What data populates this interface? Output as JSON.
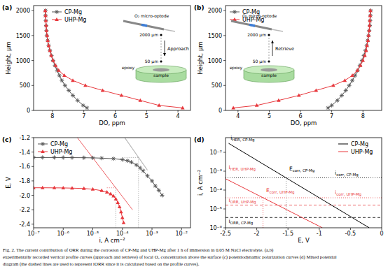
{
  "chart_data": [
    {
      "type": "line",
      "title": "(a)",
      "xlabel": "DO, ppm",
      "ylabel": "Height, µm",
      "xlim": [
        8.6,
        3.6
      ],
      "ylim": [
        0,
        2100
      ],
      "xticks": [
        8,
        7,
        6,
        5,
        4
      ],
      "yticks": [
        0,
        500,
        1000,
        1500,
        2000
      ],
      "grid": false,
      "legend": "upper left",
      "series": [
        {
          "name": "CP-Mg",
          "color": "#555555",
          "marker": "star",
          "line_style": "solid",
          "x": [
            8.22,
            8.22,
            8.21,
            8.2,
            8.19,
            8.18,
            8.15,
            8.12,
            8.08,
            8.03,
            7.98,
            7.92,
            7.85,
            7.78,
            7.7,
            7.6,
            7.48,
            7.35,
            7.2,
            7.02,
            6.9
          ],
          "values": [
            2000,
            1900,
            1800,
            1700,
            1600,
            1500,
            1400,
            1300,
            1200,
            1100,
            1000,
            900,
            800,
            700,
            600,
            500,
            400,
            300,
            200,
            100,
            50
          ]
        },
        {
          "name": "UHP-Mg",
          "color": "#e8383d",
          "marker": "triangle",
          "line_style": "solid",
          "x": [
            8.23,
            8.22,
            8.21,
            8.2,
            8.19,
            8.17,
            8.15,
            8.12,
            8.08,
            8.04,
            7.98,
            7.9,
            7.8,
            7.62,
            7.35,
            6.95,
            6.4,
            5.8,
            5.2,
            4.6,
            3.85
          ],
          "values": [
            2000,
            1900,
            1800,
            1700,
            1600,
            1500,
            1400,
            1300,
            1200,
            1100,
            1000,
            900,
            800,
            700,
            600,
            500,
            400,
            300,
            200,
            100,
            50
          ]
        }
      ],
      "inset": {
        "probe": "O₂ micro-optode",
        "top": "2000 µm",
        "action": "Approach",
        "bottom": "50 µm",
        "holder": "epoxy",
        "sample": "sample"
      }
    },
    {
      "type": "line",
      "title": "(b)",
      "xlabel": "DO, ppm",
      "ylabel": "Height, µm",
      "xlim": [
        3.6,
        8.6
      ],
      "ylim": [
        0,
        2100
      ],
      "xticks": [
        4,
        5,
        6,
        7,
        8
      ],
      "yticks": [
        0,
        500,
        1000,
        1500,
        2000
      ],
      "grid": false,
      "legend": "upper left",
      "series": [
        {
          "name": "CP-Mg",
          "color": "#555555",
          "marker": "star",
          "line_style": "solid",
          "x": [
            8.25,
            8.24,
            8.23,
            8.22,
            8.2,
            8.18,
            8.15,
            8.12,
            8.08,
            8.03,
            7.97,
            7.9,
            7.83,
            7.75,
            7.66,
            7.56,
            7.45,
            7.32,
            7.18,
            7.0,
            6.88
          ],
          "values": [
            2000,
            1900,
            1800,
            1700,
            1600,
            1500,
            1400,
            1300,
            1200,
            1100,
            1000,
            900,
            800,
            700,
            600,
            500,
            400,
            300,
            200,
            100,
            50
          ]
        },
        {
          "name": "UHP-Mg",
          "color": "#e8383d",
          "marker": "triangle",
          "line_style": "solid",
          "x": [
            8.24,
            8.23,
            8.22,
            8.21,
            8.2,
            8.18,
            8.16,
            8.13,
            8.1,
            8.06,
            8.0,
            7.92,
            7.82,
            7.66,
            7.42,
            7.05,
            6.5,
            5.95,
            5.3,
            4.6,
            3.85
          ],
          "values": [
            2000,
            1900,
            1800,
            1700,
            1600,
            1500,
            1400,
            1300,
            1200,
            1100,
            1000,
            900,
            800,
            700,
            600,
            500,
            400,
            300,
            200,
            100,
            50
          ]
        }
      ],
      "inset": {
        "probe": "O₂ micro-optode",
        "top": "2000 µm",
        "action": "Retrieve",
        "bottom": "50 µm",
        "holder": "epoxy",
        "sample": "sample"
      }
    },
    {
      "type": "line",
      "title": "(c)",
      "xlabel": "i, A cm⁻²",
      "ylabel": "E, V",
      "log": "x",
      "xlim": [
        1e-07,
        0.02
      ],
      "ylim": [
        -2.45,
        -1.2
      ],
      "xticks": [
        {
          "value": 1e-07,
          "label": "10⁻⁷"
        },
        {
          "value": 1e-06,
          "label": "10⁻⁶"
        },
        {
          "value": 1e-05,
          "label": "10⁻⁵"
        },
        {
          "value": 0.0001,
          "label": "10⁻⁴"
        },
        {
          "value": 0.001,
          "label": "10⁻³"
        },
        {
          "value": 0.01,
          "label": "10⁻²"
        }
      ],
      "yticks": [
        -1.2,
        -1.4,
        -1.6,
        -1.8,
        {
          "value": -2,
          "label": "-2.0"
        },
        -2.2,
        -2.4
      ],
      "grid": false,
      "legend": "upper left",
      "series": [
        {
          "name": "CP-Mg",
          "color": "#555555",
          "marker": "star",
          "line_style": "solid",
          "x": [
            1e-07,
            2e-07,
            5e-07,
            1e-06,
            2e-06,
            5e-06,
            1e-05,
            2e-05,
            5e-05,
            0.0001,
            0.00015,
            0.0002,
            0.0003,
            0.0004,
            0.0005,
            0.0007,
            0.001,
            0.0013,
            0.0017,
            0.0022
          ],
          "values": [
            -1.475,
            -1.475,
            -1.475,
            -1.476,
            -1.477,
            -1.478,
            -1.48,
            -1.484,
            -1.492,
            -1.505,
            -1.52,
            -1.54,
            -1.58,
            -1.62,
            -1.66,
            -1.73,
            -1.8,
            -1.87,
            -1.93,
            -2.0
          ]
        },
        {
          "name": "UHP-Mg",
          "color": "#e8383d",
          "marker": "triangle",
          "line_style": "solid",
          "x": [
            1e-07,
            2e-07,
            5e-07,
            1e-06,
            2e-06,
            5e-06,
            1e-05,
            2e-05,
            3e-05,
            4e-05,
            5e-05,
            6e-05,
            7e-05,
            8e-05,
            9e-05,
            0.0001,
            0.00011
          ],
          "values": [
            -1.895,
            -1.895,
            -1.896,
            -1.897,
            -1.9,
            -1.905,
            -1.915,
            -1.935,
            -1.955,
            -1.98,
            -2.01,
            -2.05,
            -2.1,
            -2.16,
            -2.23,
            -2.31,
            -2.38
          ]
        }
      ],
      "guides": [
        {
          "color": "#888888",
          "line_style": "solid",
          "x": [
            0.00012,
            0.0007
          ],
          "values": [
            -1.2,
            -1.65
          ]
        },
        {
          "color": "#e8383d",
          "line_style": "solid",
          "x": [
            3e-06,
            0.00022
          ],
          "values": [
            -1.2,
            -2.2
          ]
        },
        {
          "color": "#888888",
          "line_style": "dotted",
          "x": [
            0.0001,
            0.00035
          ],
          "values": [
            -1.475,
            -1.475
          ]
        },
        {
          "color": "#888888",
          "line_style": "dotted",
          "x": [
            0.00035,
            0.00035
          ],
          "values": [
            -1.475,
            -2.45
          ]
        },
        {
          "color": "#e8383d",
          "line_style": "dotted",
          "x": [
            3e-05,
            6e-05
          ],
          "values": [
            -1.895,
            -1.895
          ]
        },
        {
          "color": "#888888",
          "line_style": "dotted",
          "x": [
            6e-05,
            6e-05
          ],
          "values": [
            -1.895,
            -2.45
          ]
        }
      ]
    },
    {
      "type": "line",
      "title": "(d)",
      "xlabel": "E, V",
      "ylabel": "i, A cm⁻²",
      "log": "y",
      "xlim": [
        -2.5,
        0
      ],
      "ylim": [
        1e-06,
        0.06
      ],
      "xticks": [
        -2.5,
        -2,
        -1.5,
        -1,
        -0.5,
        0
      ],
      "yticks": [
        {
          "value": 1e-06,
          "label": "10⁻⁶"
        },
        {
          "value": 1e-05,
          "label": "10⁻⁵"
        },
        {
          "value": 0.0001,
          "label": "10⁻⁴"
        },
        {
          "value": 0.001,
          "label": "10⁻³"
        },
        {
          "value": 0.01,
          "label": "10⁻²"
        }
      ],
      "grid": false,
      "legend": "upper right",
      "series": [
        {
          "name": "CP-Mg",
          "color": "#000000",
          "line_style": "solid",
          "x": [
            -2.45,
            -0.2
          ],
          "values": [
            0.03,
            1e-06
          ]
        },
        {
          "name": "UHP-Mg",
          "color": "#e8383d",
          "line_style": "solid",
          "x": [
            -2.5,
            -0.95
          ],
          "values": [
            0.0004,
            1e-06
          ]
        }
      ],
      "guides": [
        {
          "color": "#000000",
          "line_style": "dotted",
          "x": [
            -2.5,
            0
          ],
          "values": [
            0.00045,
            0.00045
          ]
        },
        {
          "color": "#e8383d",
          "line_style": "dotted",
          "x": [
            -2.5,
            0
          ],
          "values": [
            3.9e-05,
            3.9e-05
          ]
        },
        {
          "color": "#e8383d",
          "line_style": "dashed",
          "x": [
            -2.5,
            0
          ],
          "values": [
            1.6e-05,
            1.6e-05
          ]
        },
        {
          "color": "#000000",
          "line_style": "dashed",
          "x": [
            -2.5,
            0
          ],
          "values": [
            3.5e-06,
            3.5e-06
          ]
        },
        {
          "color": "#888888",
          "line_style": "dotted",
          "x": [
            -1.53,
            -1.53
          ],
          "values": [
            1e-06,
            0.00045
          ]
        },
        {
          "color": "#e8383d",
          "line_style": "dotted",
          "x": [
            -1.9,
            -1.9
          ],
          "values": [
            1e-06,
            3.9e-05
          ]
        }
      ],
      "annotations": [
        {
          "main": "i",
          "sub": "HER, CP-Mg",
          "x": -2.42,
          "y": 0.045,
          "color": "#000000"
        },
        {
          "main": "E",
          "sub": "corr, CP-Mg",
          "x": -1.48,
          "y": 0.0011,
          "color": "#000000"
        },
        {
          "main": "i",
          "sub": "corr, CP-Mg",
          "x": -0.75,
          "y": 0.00065,
          "color": "#000000"
        },
        {
          "main": "i",
          "sub": "HER, UHP-Mg",
          "x": -2.45,
          "y": 0.0013,
          "color": "#e8383d"
        },
        {
          "main": "E",
          "sub": "corr, UHP-Mg",
          "x": -1.85,
          "y": 8e-05,
          "color": "#e8383d"
        },
        {
          "main": "i",
          "sub": "corr, UHP-Mg",
          "x": -0.75,
          "y": 6e-05,
          "color": "#e8383d"
        },
        {
          "main": "i",
          "sub": "ORR, UHP-Mg",
          "x": -2.45,
          "y": 2.3e-05,
          "color": "#e8383d"
        },
        {
          "main": "i",
          "sub": "ORR, CP-Mg",
          "x": -2.45,
          "y": 1.8e-06,
          "color": "#000000"
        }
      ]
    }
  ],
  "caption": [
    "Fig. 2. The current contribution of ORR during the corrosion of CP-Mg and UHP-Mg after 1 h of immersion in 0.05 M NaCl electrolyte. (a,b)",
    "experimentally recorded vertical profile curves (approach and retrieve) of local O₂ concentration above the surface (c) potentiodynamic polarization curves (d) Mixed potential",
    "diagram (the dashed lines are used to represent iORR since it is calculated based on the profile curves)."
  ]
}
